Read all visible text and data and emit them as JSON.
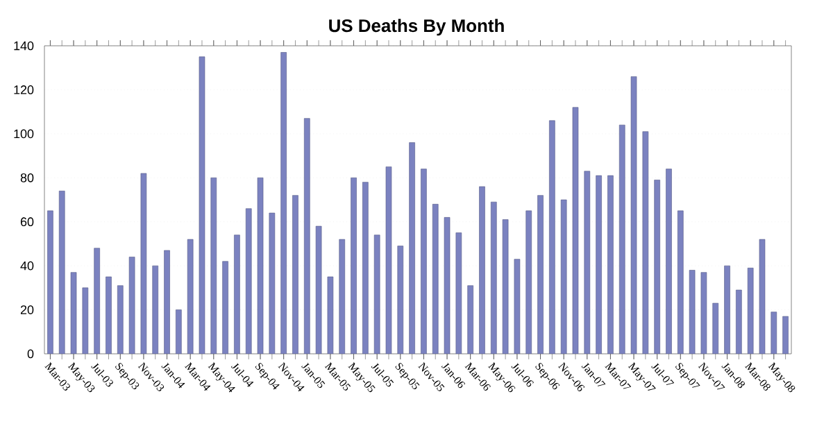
{
  "chart_data": {
    "type": "bar",
    "title": "US Deaths By Month",
    "categories": [
      "Mar-03",
      null,
      "May-03",
      null,
      "Jul-03",
      null,
      "Sep-03",
      null,
      "Nov-03",
      null,
      "Jan-04",
      null,
      "Mar-04",
      null,
      "May-04",
      null,
      "Jul-04",
      null,
      "Sep-04",
      null,
      "Nov-04",
      null,
      "Jan-05",
      null,
      "Mar-05",
      null,
      "May-05",
      null,
      "Jul-05",
      null,
      "Sep-05",
      null,
      "Nov-05",
      null,
      "Jan-06",
      null,
      "Mar-06",
      null,
      "May-06",
      null,
      "Jul-06",
      null,
      "Sep-06",
      null,
      "Nov-06",
      null,
      "Jan-07",
      null,
      "Mar-07",
      null,
      "May-07",
      null,
      "Jul-07",
      null,
      "Sep-07",
      null,
      "Nov-07",
      null,
      "Jan-08",
      null,
      "Mar-08",
      null,
      "May-08",
      null
    ],
    "values": [
      65,
      74,
      37,
      30,
      48,
      35,
      31,
      44,
      82,
      40,
      47,
      20,
      52,
      135,
      80,
      42,
      54,
      66,
      80,
      64,
      137,
      72,
      107,
      58,
      35,
      52,
      80,
      78,
      54,
      85,
      49,
      96,
      84,
      68,
      62,
      55,
      31,
      76,
      69,
      61,
      43,
      65,
      72,
      106,
      70,
      112,
      83,
      81,
      81,
      104,
      126,
      101,
      79,
      84,
      65,
      38,
      37,
      23,
      40,
      29,
      39,
      52,
      19,
      17
    ],
    "color": "#7b82c0",
    "ylim": [
      0,
      140
    ],
    "yticks": [
      0,
      20,
      40,
      60,
      80,
      100,
      120,
      140
    ],
    "grid": "y"
  }
}
